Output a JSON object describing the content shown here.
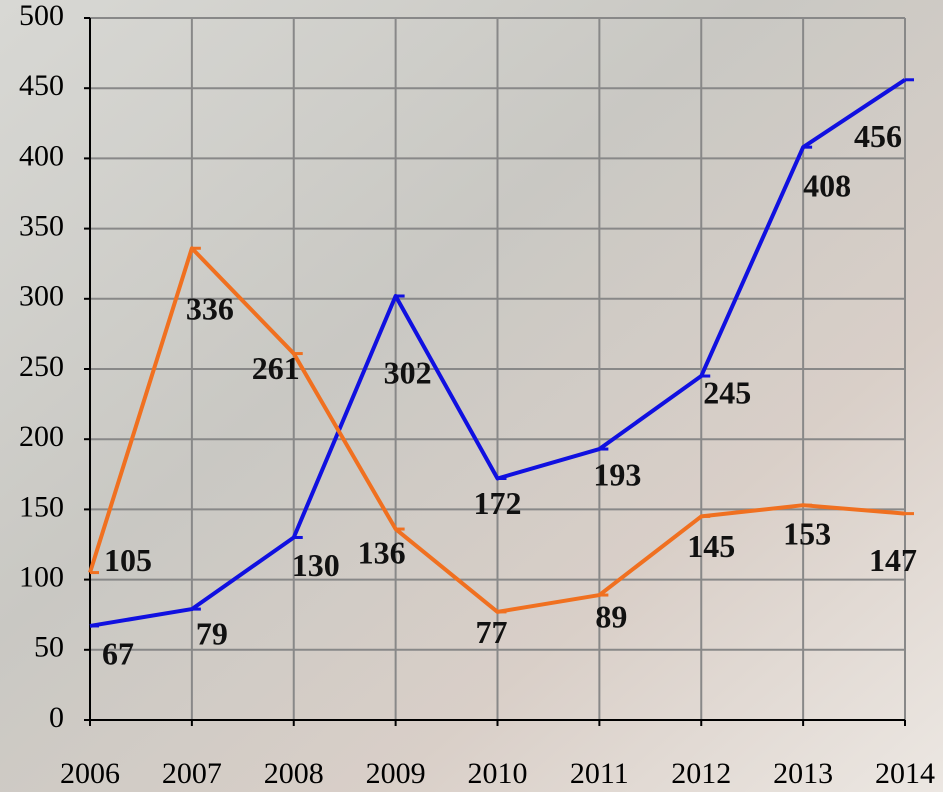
{
  "chart_data": {
    "type": "line",
    "categories": [
      "2006",
      "2007",
      "2008",
      "2009",
      "2010",
      "2011",
      "2012",
      "2013",
      "2014"
    ],
    "series": [
      {
        "color": "#1010e0",
        "values": [
          67,
          79,
          130,
          302,
          172,
          193,
          245,
          408,
          456
        ]
      },
      {
        "color": "#f07020",
        "values": [
          105,
          336,
          261,
          136,
          77,
          89,
          145,
          153,
          147
        ]
      }
    ],
    "ylim": [
      0,
      500
    ],
    "yticks": [
      0,
      50,
      100,
      150,
      200,
      250,
      300,
      350,
      400,
      450,
      500
    ],
    "grid": true
  }
}
